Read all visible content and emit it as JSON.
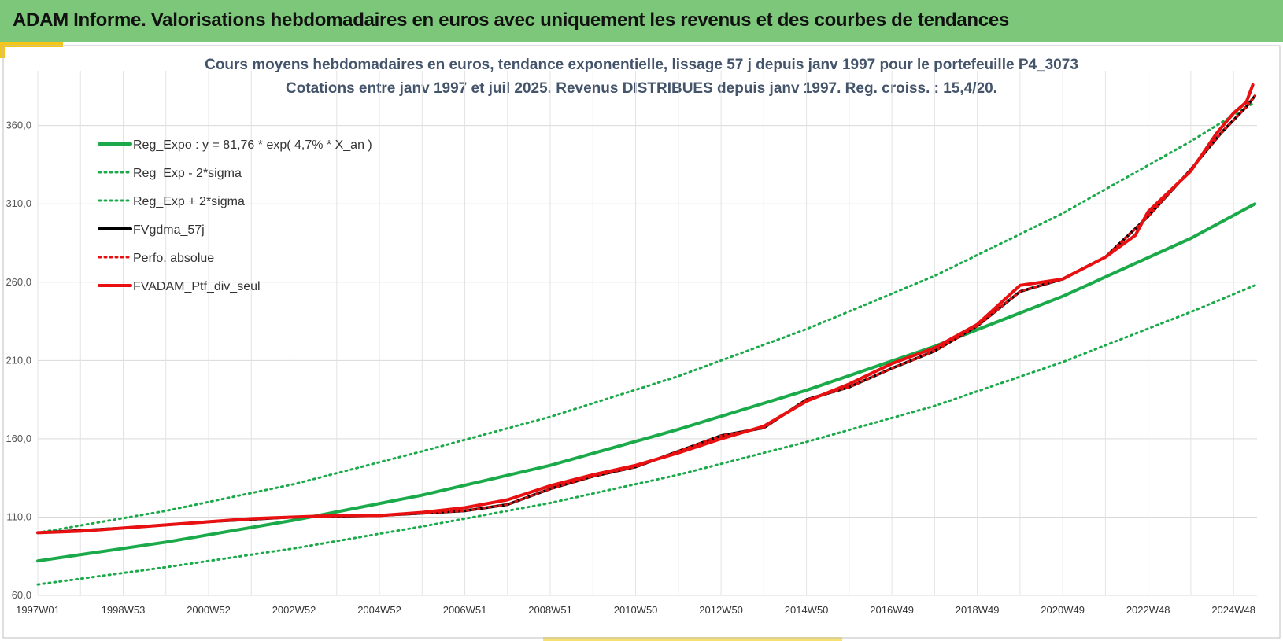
{
  "header": {
    "title": "ADAM Informe. Valorisations hebdomadaires en euros avec uniquement les revenus et des courbes de tendances"
  },
  "colors": {
    "header_bg": "#7dc77a",
    "regression": "#1aaa4a",
    "sigma_band": "#1aaa4a",
    "fvgdma": "#000000",
    "perfo": "#e81010",
    "fvadam": "#e81010",
    "title_text": "#44546a"
  },
  "chart_data": {
    "type": "line",
    "title": "Cours moyens hebdomadaires  en euros, tendance exponentielle, lissage 57 j depuis janv 1997 pour le portefeuille P4_3073",
    "subtitle": "Cotations  entre janv 1997 et juil 2025. Revenus DISTRIBUES depuis janv 1997. Reg. croiss. : 15,4/20.",
    "xlabel": "",
    "ylabel": "",
    "ylim": [
      60,
      395
    ],
    "xlim": [
      1997.0,
      2025.55
    ],
    "grid": true,
    "legend_position": "top-left",
    "y_ticks": [
      "60,0",
      "110,0",
      "160,0",
      "210,0",
      "260,0",
      "310,0",
      "360,0"
    ],
    "y_tick_values": [
      60,
      110,
      160,
      210,
      260,
      310,
      360
    ],
    "x_tick_labels": [
      "1997W01",
      "1998W53",
      "2000W52",
      "2002W52",
      "2004W52",
      "2006W51",
      "2008W51",
      "2010W50",
      "2012W50",
      "2014W50",
      "2016W49",
      "2018W49",
      "2020W49",
      "2022W48",
      "2024W48"
    ],
    "x_tick_values": [
      1997.0,
      1999.0,
      2001.0,
      2003.0,
      2005.0,
      2007.0,
      2009.0,
      2011.0,
      2013.0,
      2015.0,
      2017.0,
      2019.0,
      2021.0,
      2023.0,
      2025.0
    ],
    "regression": {
      "a": 81.76,
      "rate": 0.047
    },
    "series": [
      {
        "name": "Reg_Expo : y = 81,76 * exp( 4,7% *  X_an )",
        "style": "solid",
        "color": "#1aaa4a",
        "x": [
          1997.0,
          2000.0,
          2003.0,
          2006.0,
          2009.0,
          2012.0,
          2015.0,
          2018.0,
          2021.0,
          2024.0,
          2025.5
        ],
        "y": [
          82,
          94,
          108,
          124,
          143,
          166,
          191,
          219,
          251,
          288,
          310
        ]
      },
      {
        "name": "Reg_Exp - 2*sigma",
        "style": "dotted",
        "color": "#1aaa4a",
        "x": [
          1997.0,
          2000.0,
          2003.0,
          2006.0,
          2009.0,
          2012.0,
          2015.0,
          2018.0,
          2021.0,
          2024.0,
          2025.5
        ],
        "y": [
          67,
          78,
          90,
          104,
          119,
          137,
          158,
          181,
          209,
          241,
          258
        ]
      },
      {
        "name": "Reg_Exp + 2*sigma",
        "style": "dotted",
        "color": "#1aaa4a",
        "x": [
          1997.0,
          2000.0,
          2003.0,
          2006.0,
          2009.0,
          2012.0,
          2015.0,
          2018.0,
          2021.0,
          2024.0,
          2025.5
        ],
        "y": [
          100,
          114,
          131,
          152,
          174,
          200,
          230,
          264,
          304,
          350,
          375
        ]
      },
      {
        "name": "FVgdma_57j",
        "style": "solid",
        "color": "#000000",
        "x": [
          1997.0,
          1999.0,
          2001.0,
          2003.0,
          2005.0,
          2007.0,
          2008.0,
          2009.0,
          2010.0,
          2011.0,
          2012.0,
          2013.0,
          2014.0,
          2015.0,
          2016.0,
          2017.0,
          2018.0,
          2019.0,
          2020.0,
          2021.0,
          2022.0,
          2023.0,
          2024.0,
          2024.7,
          2025.3,
          2025.5
        ],
        "y": [
          100,
          103,
          107,
          110,
          111,
          114,
          118,
          128,
          136,
          142,
          152,
          162,
          167,
          185,
          193,
          205,
          216,
          232,
          254,
          262,
          276,
          302,
          332,
          355,
          372,
          379
        ]
      },
      {
        "name": "Perfo. absolue",
        "style": "dotted",
        "color": "#e81010",
        "x": [
          1997.0,
          1999.0,
          2001.0,
          2003.0,
          2005.0,
          2007.0,
          2008.0,
          2009.0,
          2010.0,
          2011.0,
          2012.0,
          2013.0,
          2014.0,
          2015.0,
          2016.0,
          2017.0,
          2018.0,
          2019.0,
          2020.0,
          2021.0,
          2022.0,
          2023.0,
          2024.0,
          2024.7,
          2025.3,
          2025.5
        ],
        "y": [
          100,
          103,
          107,
          110,
          111,
          114,
          118,
          128,
          136,
          142,
          152,
          162,
          167,
          185,
          193,
          205,
          216,
          232,
          254,
          262,
          276,
          302,
          332,
          355,
          372,
          379
        ]
      },
      {
        "name": "FVADAM_Ptf_div_seul",
        "style": "solid",
        "color": "#e81010",
        "x": [
          1997.0,
          1998.0,
          1999.0,
          2000.0,
          2001.0,
          2002.0,
          2003.0,
          2004.0,
          2005.0,
          2006.0,
          2007.0,
          2008.0,
          2009.0,
          2010.0,
          2011.0,
          2012.0,
          2013.0,
          2014.0,
          2015.0,
          2016.0,
          2017.0,
          2018.0,
          2019.0,
          2020.0,
          2021.0,
          2022.0,
          2022.7,
          2023.0,
          2024.0,
          2024.6,
          2025.0,
          2025.3,
          2025.45
        ],
        "y": [
          100,
          101,
          103,
          105,
          107,
          109,
          110,
          111,
          111,
          113,
          116,
          121,
          130,
          137,
          143,
          151,
          160,
          168,
          184,
          195,
          208,
          218,
          233,
          258,
          262,
          276,
          290,
          305,
          331,
          355,
          368,
          375,
          386
        ]
      }
    ]
  }
}
